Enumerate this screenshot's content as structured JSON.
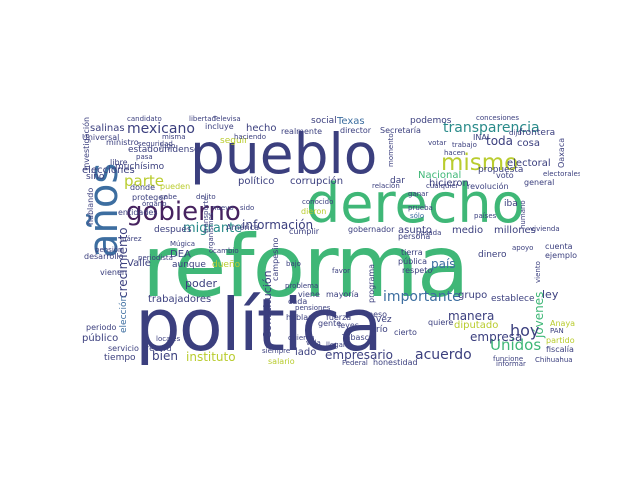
{
  "palette": {
    "navy": "#3b3f7e",
    "green": "#3fb777",
    "yellow": "#b9cc2e",
    "teal": "#2a8b8a",
    "blue": "#3d6ea0",
    "purple": "#46225f",
    "lime": "#8fd14f",
    "cyan": "#1fa3a6"
  },
  "words": {
    "reforma": "reforma",
    "derecho": "derecho",
    "pueblo": "pueblo",
    "politica": "política",
    "anos": "años",
    "gobierno": "gobierno",
    "mismo": "mismo",
    "transparencia": "transparencia",
    "mexicano": "mexicano",
    "parte": "parte",
    "informacion": "información",
    "politico": "político",
    "corrupcion": "corrupción",
    "migrante": "migrante",
    "poder": "poder",
    "importante": "importante",
    "jovenes": "jóvenes",
    "unidos": "Unidos",
    "instituto": "instituto",
    "empresario": "empresario",
    "acuerdo": "acuerdo",
    "bien": "bien",
    "hoy": "hoy",
    "pais": "país",
    "crecimiento": "crecimiento",
    "constitucion": "Constitución",
    "trabajadores": "trabajadores",
    "empresa": "empresa",
    "manera": "manera",
    "ley": "ley",
    "grupo": "grupo",
    "hecho": "hecho",
    "toda": "toda",
    "cosa": "cosa",
    "electoral": "electoral",
    "propuesta": "propuesta",
    "valle": "Valle",
    "nacional": "Nacional",
    "hicieron": "hicieron",
    "asunto": "asunto",
    "medio": "medio",
    "millones": "millones",
    "dinero": "dinero",
    "salinas": "salinas",
    "elecciones": "elecciones",
    "estadounidense": "estadounidense",
    "muchisimo": "muchísimo",
    "sino": "sino",
    "podemos": "podemos",
    "social": "social",
    "texas": "Texas",
    "director": "director",
    "secretaria": "Secretaría",
    "incluye": "incluye",
    "realmente": "realmente",
    "frontera": "frontera",
    "inai": "INAI",
    "dar": "dar",
    "gobernador": "gobernador",
    "despues": "después",
    "dea": "DEA",
    "aunque": "aunque",
    "duenno": "dueño",
    "publico": "público",
    "servicio": "servicio",
    "tiempo": "tiempo",
    "periodo": "periodo",
    "record": "récord",
    "lado": "lado",
    "salario": "salario",
    "diputado": "diputado",
    "partido": "partido",
    "fiscalia": "fiscalía",
    "anaya": "Anaya",
    "establece": "establece",
    "cuenta": "cuenta",
    "ejemplo": "ejemplo",
    "vez": "vez",
    "rio": "río",
    "cierto": "cierto",
    "quiere": "quiere",
    "iba": "iba",
    "tierra": "tierra",
    "mayoria": "mayoría",
    "viene": "viene",
    "cumplir": "cumplir",
    "campesino": "campesino",
    "america": "América",
    "seguir": "seguir",
    "pueden": "pueden",
    "donde": "donde",
    "proteger": "proteger",
    "universal": "Universal",
    "libre": "libre",
    "pasa": "pasa",
    "ministro": "ministro",
    "investigacion": "investigación",
    "entidades": "entidades",
    "hablando": "hablando",
    "desarrollo": "desarrollo",
    "vienen": "vienen",
    "eleccion": "elección",
    "juarez": "Juárez",
    "mugica": "Múgica",
    "organismos": "organismos",
    "locales": "locales",
    "nuevo": "nuevo",
    "sido": "sido",
    "cada": "cada",
    "hablar": "hablar",
    "bajo": "bajo",
    "fuerza": "fuerza",
    "gente": "gente",
    "leyes": "leyes",
    "peso": "peso",
    "tabasco": "Tabasco",
    "persona": "persona",
    "programa": "programa",
    "publica": "pública",
    "respeto": "respeto",
    "ganar": "ganar",
    "prueba": "prueba",
    "solo": "sólo",
    "revolucion": "revolución",
    "voto": "voto",
    "general": "general",
    "informar": "informar",
    "funcione": "funcione",
    "pan": "PAN",
    "chihuahua": "Chihuahua",
    "oaxaca": "Oaxaca",
    "viento": "viento",
    "vivienda": "vivienda",
    "apoyo": "apoyo",
    "favor": "favor",
    "problema": "problema",
    "siempre": "siempre",
    "federal": "Federal",
    "honestidad": "honestidad",
    "quieren": "quieren",
    "candidato": "candidato",
    "libertad": "libertad",
    "televisa": "Televisa",
    "concesiones": "concesiones",
    "dijo": "dijo",
    "trabajo": "trabajo",
    "haciendo": "haciendo",
    "momento": "momento",
    "votar": "votar",
    "hacen": "hacen",
    "electorales": "electorales",
    "jugo": "Jugo",
    "organo": "órgano",
    "seguridad": "seguridad",
    "cabe": "cabe",
    "delito": "delito",
    "menos": "menos",
    "pension": "pensión",
    "pensiones": "pensiones",
    "pasada": "pasada",
    "paises": "países",
    "dieron": "dieron",
    "conocido": "conocido",
    "relacion": "relación",
    "cualquier": "cualquier",
    "mercado": "mercado",
    "transporte": "transporte",
    "cambio": "cambio",
    "periodista": "periodista",
    "muerte": "muerte",
    "llegan": "llegan",
    "ministros": "ministros",
    "pasó": "pasó",
    "miles": "miles",
    "humano": "humano",
    "vida": "vida",
    "cual": "cual",
    "misma": "misma"
  }
}
